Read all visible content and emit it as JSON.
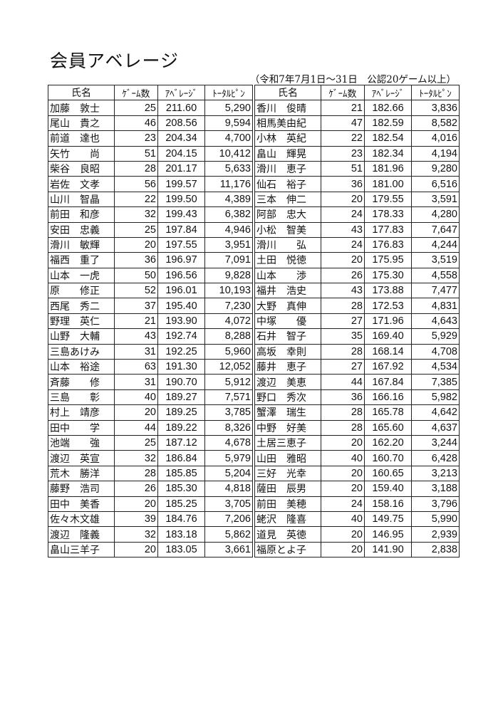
{
  "title": "会員アベレージ",
  "subtitle": "（令和7年7月1日～31日　公認20ゲーム以上）",
  "headers": {
    "name": "氏名",
    "games": "ｹﾞｰﾑ数",
    "average": "ｱﾍﾞﾚｰｼﾞ",
    "total": "ﾄｰﾀﾙﾋﾟﾝ"
  },
  "left": [
    [
      "加藤　敦士",
      "25",
      "211.60",
      "5,290"
    ],
    [
      "尾山　貴之",
      "46",
      "208.56",
      "9,594"
    ],
    [
      "前道　達也",
      "23",
      "204.34",
      "4,700"
    ],
    [
      "矢竹　　尚",
      "51",
      "204.15",
      "10,412"
    ],
    [
      "柴谷　良昭",
      "28",
      "201.17",
      "5,633"
    ],
    [
      "岩佐　文孝",
      "56",
      "199.57",
      "11,176"
    ],
    [
      "山川　智晶",
      "22",
      "199.50",
      "4,389"
    ],
    [
      "前田　和彦",
      "32",
      "199.43",
      "6,382"
    ],
    [
      "安田　忠義",
      "25",
      "197.84",
      "4,946"
    ],
    [
      "滑川　敏輝",
      "20",
      "197.55",
      "3,951"
    ],
    [
      "福西　重了",
      "36",
      "196.97",
      "7,091"
    ],
    [
      "山本　一虎",
      "50",
      "196.56",
      "9,828"
    ],
    [
      "原　　修正",
      "52",
      "196.01",
      "10,193"
    ],
    [
      "西尾　秀二",
      "37",
      "195.40",
      "7,230"
    ],
    [
      "野理　英仁",
      "21",
      "193.90",
      "4,072"
    ],
    [
      "山野　大輔",
      "43",
      "192.74",
      "8,288"
    ],
    [
      "三島あけみ",
      "31",
      "192.25",
      "5,960"
    ],
    [
      "山本　裕途",
      "63",
      "191.30",
      "12,052"
    ],
    [
      "斉藤　　修",
      "31",
      "190.70",
      "5,912"
    ],
    [
      "三島　　彰",
      "40",
      "189.27",
      "7,571"
    ],
    [
      "村上　靖彦",
      "20",
      "189.25",
      "3,785"
    ],
    [
      "田中　　学",
      "44",
      "189.22",
      "8,326"
    ],
    [
      "池端　　強",
      "25",
      "187.12",
      "4,678"
    ],
    [
      "渡辺　英宣",
      "32",
      "186.84",
      "5,979"
    ],
    [
      "荒木　勝洋",
      "28",
      "185.85",
      "5,204"
    ],
    [
      "藤野　浩司",
      "26",
      "185.30",
      "4,818"
    ],
    [
      "田中　美香",
      "20",
      "185.25",
      "3,705"
    ],
    [
      "佐々木文雄",
      "39",
      "184.76",
      "7,206"
    ],
    [
      "渡辺　隆義",
      "32",
      "183.18",
      "5,862"
    ],
    [
      "畠山三羊子",
      "20",
      "183.05",
      "3,661"
    ]
  ],
  "right": [
    [
      "香川　俊晴",
      "21",
      "182.66",
      "3,836"
    ],
    [
      "相馬美由紀",
      "47",
      "182.59",
      "8,582"
    ],
    [
      "小林　英紀",
      "22",
      "182.54",
      "4,016"
    ],
    [
      "畠山　輝晃",
      "23",
      "182.34",
      "4,194"
    ],
    [
      "滑川　恵子",
      "51",
      "181.96",
      "9,280"
    ],
    [
      "仙石　裕子",
      "36",
      "181.00",
      "6,516"
    ],
    [
      "三本　伸二",
      "20",
      "179.55",
      "3,591"
    ],
    [
      "阿部　忠大",
      "24",
      "178.33",
      "4,280"
    ],
    [
      "小松　智美",
      "43",
      "177.83",
      "7,647"
    ],
    [
      "滑川　　弘",
      "24",
      "176.83",
      "4,244"
    ],
    [
      "土田　悦徳",
      "20",
      "175.95",
      "3,519"
    ],
    [
      "山本　　渉",
      "26",
      "175.30",
      "4,558"
    ],
    [
      "福井　浩史",
      "43",
      "173.88",
      "7,477"
    ],
    [
      "大野　真伸",
      "28",
      "172.53",
      "4,831"
    ],
    [
      "中塚　　優",
      "27",
      "171.96",
      "4,643"
    ],
    [
      "石井　智子",
      "35",
      "169.40",
      "5,929"
    ],
    [
      "高坂　幸則",
      "28",
      "168.14",
      "4,708"
    ],
    [
      "藤井　恵子",
      "27",
      "167.92",
      "4,534"
    ],
    [
      "渡辺　美恵",
      "44",
      "167.84",
      "7,385"
    ],
    [
      "野口　秀次",
      "36",
      "166.16",
      "5,982"
    ],
    [
      "蟹澤　瑞生",
      "28",
      "165.78",
      "4,642"
    ],
    [
      "中野　好美",
      "28",
      "165.60",
      "4,637"
    ],
    [
      "土居三恵子",
      "20",
      "162.20",
      "3,244"
    ],
    [
      "山田　雅昭",
      "40",
      "160.70",
      "6,428"
    ],
    [
      "三好　光幸",
      "20",
      "160.65",
      "3,213"
    ],
    [
      "薩田　辰男",
      "20",
      "159.40",
      "3,188"
    ],
    [
      "前田　美穂",
      "24",
      "158.16",
      "3,796"
    ],
    [
      "蛯沢　隆喜",
      "40",
      "149.75",
      "5,990"
    ],
    [
      "道見　英徳",
      "20",
      "146.95",
      "2,939"
    ],
    [
      "福原とよ子",
      "20",
      "141.90",
      "2,838"
    ]
  ]
}
